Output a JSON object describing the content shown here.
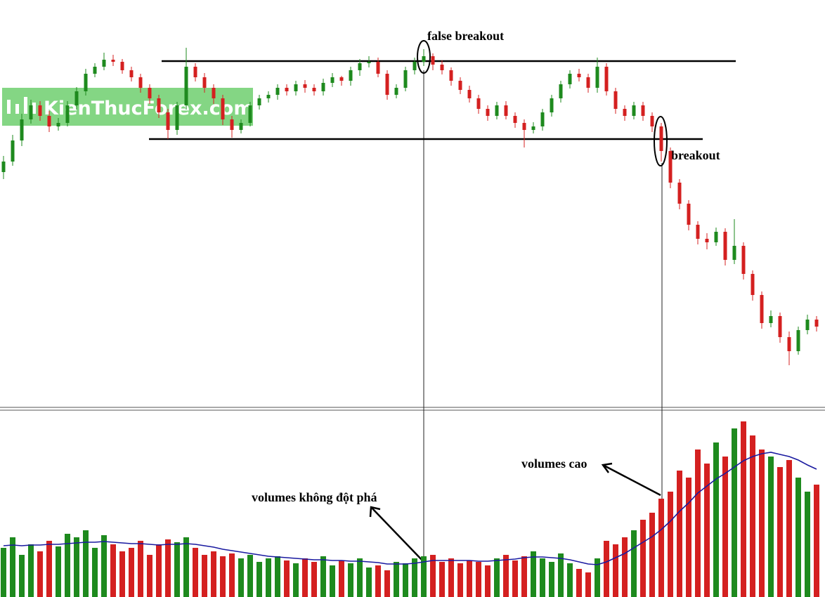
{
  "chart_data": {
    "type": "candlestick",
    "watermark": "KienThucForex.com",
    "ylim": [
      0,
      520
    ],
    "levels": [
      473,
      362
    ],
    "up_color": "#1e8a1e",
    "down_color": "#d42020",
    "open": [
      315,
      330,
      360,
      390,
      410,
      395,
      380,
      385,
      410,
      430,
      455,
      465,
      475,
      472,
      460,
      450,
      435,
      420,
      400,
      375,
      410,
      465,
      450,
      435,
      420,
      390,
      375,
      385,
      410,
      420,
      425,
      435,
      430,
      440,
      435,
      430,
      442,
      450,
      445,
      460,
      470,
      472,
      455,
      425,
      435,
      460,
      472,
      480,
      468,
      460,
      445,
      432,
      420,
      405,
      395,
      410,
      395,
      385,
      375,
      380,
      400,
      420,
      440,
      455,
      450,
      435,
      465,
      430,
      405,
      395,
      410,
      395,
      380,
      345,
      300,
      270,
      240,
      220,
      215,
      230,
      190,
      210,
      170,
      140,
      100,
      110,
      80,
      60,
      90,
      105
    ],
    "high": [
      338,
      368,
      398,
      418,
      416,
      402,
      392,
      416,
      436,
      462,
      470,
      485,
      482,
      476,
      465,
      455,
      440,
      425,
      405,
      415,
      492,
      470,
      456,
      440,
      425,
      395,
      390,
      415,
      425,
      430,
      440,
      440,
      445,
      446,
      440,
      448,
      456,
      452,
      465,
      476,
      480,
      478,
      460,
      440,
      465,
      478,
      490,
      484,
      474,
      464,
      450,
      438,
      425,
      410,
      415,
      416,
      400,
      390,
      386,
      405,
      425,
      445,
      460,
      462,
      455,
      478,
      470,
      435,
      410,
      415,
      415,
      400,
      385,
      350,
      305,
      275,
      245,
      228,
      236,
      235,
      248,
      215,
      175,
      145,
      118,
      115,
      88,
      95,
      112,
      110
    ],
    "low": [
      305,
      324,
      352,
      384,
      388,
      372,
      374,
      380,
      404,
      424,
      450,
      460,
      466,
      455,
      444,
      428,
      412,
      392,
      362,
      368,
      404,
      444,
      428,
      412,
      382,
      364,
      370,
      380,
      404,
      414,
      418,
      424,
      424,
      428,
      424,
      424,
      436,
      438,
      438,
      452,
      464,
      450,
      418,
      420,
      430,
      454,
      466,
      460,
      454,
      438,
      426,
      414,
      398,
      388,
      390,
      390,
      378,
      350,
      370,
      374,
      394,
      414,
      434,
      444,
      428,
      428,
      424,
      398,
      388,
      390,
      388,
      372,
      330,
      292,
      262,
      232,
      212,
      205,
      210,
      182,
      184,
      162,
      132,
      92,
      94,
      72,
      40,
      55,
      84,
      88
    ],
    "close": [
      330,
      360,
      390,
      410,
      395,
      380,
      385,
      410,
      430,
      455,
      465,
      475,
      472,
      460,
      450,
      435,
      420,
      400,
      375,
      410,
      465,
      450,
      435,
      420,
      390,
      375,
      385,
      410,
      420,
      425,
      435,
      430,
      440,
      435,
      430,
      442,
      450,
      445,
      460,
      470,
      472,
      455,
      425,
      435,
      460,
      472,
      480,
      468,
      460,
      445,
      432,
      420,
      405,
      395,
      410,
      395,
      385,
      375,
      380,
      400,
      420,
      440,
      455,
      450,
      435,
      465,
      430,
      405,
      395,
      410,
      395,
      380,
      345,
      300,
      270,
      240,
      220,
      215,
      230,
      190,
      210,
      170,
      140,
      100,
      110,
      80,
      60,
      90,
      105,
      95
    ],
    "volume": {
      "ylim": [
        0,
        260
      ],
      "ma_color": "#1a1aa0",
      "values": [
        70,
        85,
        60,
        75,
        65,
        80,
        72,
        90,
        85,
        95,
        70,
        88,
        75,
        65,
        70,
        80,
        60,
        75,
        82,
        78,
        85,
        70,
        60,
        65,
        58,
        62,
        55,
        60,
        50,
        55,
        58,
        52,
        48,
        55,
        50,
        58,
        45,
        52,
        48,
        55,
        42,
        45,
        38,
        50,
        48,
        55,
        58,
        60,
        50,
        55,
        48,
        52,
        50,
        45,
        55,
        60,
        52,
        58,
        65,
        55,
        50,
        62,
        48,
        40,
        35,
        55,
        80,
        75,
        85,
        95,
        110,
        120,
        140,
        150,
        180,
        170,
        210,
        190,
        220,
        200,
        240,
        250,
        230,
        210,
        200,
        185,
        195,
        170,
        150,
        160
      ],
      "ma": [
        73,
        74,
        73,
        74,
        74,
        75,
        75,
        76,
        77,
        78,
        78,
        79,
        78,
        77,
        76,
        76,
        75,
        74,
        75,
        75,
        76,
        75,
        73,
        71,
        68,
        66,
        64,
        62,
        60,
        58,
        57,
        56,
        55,
        54,
        53,
        53,
        52,
        52,
        51,
        51,
        50,
        49,
        47,
        47,
        47,
        48,
        50,
        52,
        52,
        52,
        52,
        52,
        51,
        51,
        52,
        53,
        54,
        56,
        57,
        57,
        56,
        55,
        53,
        50,
        47,
        46,
        50,
        56,
        62,
        70,
        78,
        86,
        96,
        108,
        122,
        134,
        148,
        158,
        168,
        176,
        185,
        194,
        200,
        204,
        206,
        203,
        200,
        195,
        188,
        182
      ]
    },
    "annotations": [
      "false breakout",
      "breakout",
      "volumes không đột phá",
      "volumes cao"
    ]
  }
}
